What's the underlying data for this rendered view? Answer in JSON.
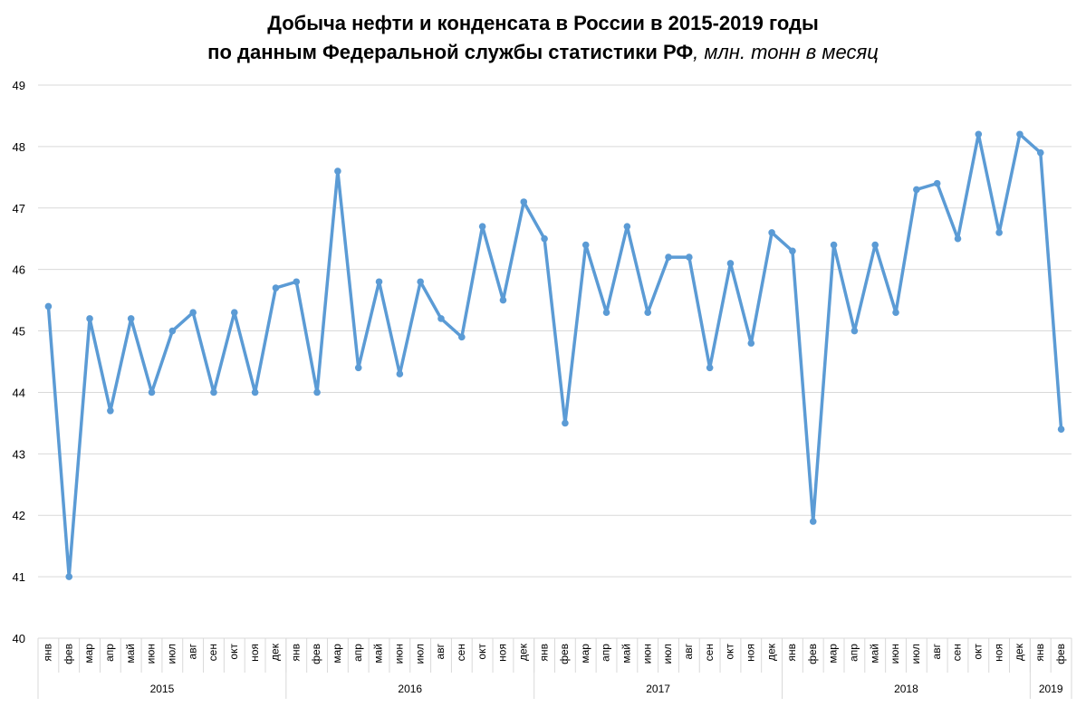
{
  "title": {
    "line1": "Добыча нефти и конденсата в России в 2015-2019 годы",
    "line2_bold": "по данным Федеральной службы статистики РФ",
    "line2_italic": ", млн. тонн в месяц"
  },
  "chart_data": {
    "type": "line",
    "title": "Добыча нефти и конденсата в России в 2015-2019 годы по данным Федеральной службы статистики РФ, млн. тонн в месяц",
    "xlabel": "",
    "ylabel": "",
    "ylim": [
      40,
      49
    ],
    "yticks": [
      40,
      41,
      42,
      43,
      44,
      45,
      46,
      47,
      48,
      49
    ],
    "grid": true,
    "legend": "none",
    "color": "#5B9BD5",
    "years": [
      {
        "label": "2015",
        "count": 12
      },
      {
        "label": "2016",
        "count": 12
      },
      {
        "label": "2017",
        "count": 12
      },
      {
        "label": "2018",
        "count": 12
      },
      {
        "label": "2019",
        "count": 2
      }
    ],
    "categories": [
      "янв",
      "фев",
      "мар",
      "апр",
      "май",
      "июн",
      "июл",
      "авг",
      "сен",
      "окт",
      "ноя",
      "дек",
      "янв",
      "фев",
      "мар",
      "апр",
      "май",
      "июн",
      "июл",
      "авг",
      "сен",
      "окт",
      "ноя",
      "дек",
      "янв",
      "фев",
      "мар",
      "апр",
      "май",
      "июн",
      "июл",
      "авг",
      "сен",
      "окт",
      "ноя",
      "дек",
      "янв",
      "фев",
      "мар",
      "апр",
      "май",
      "июн",
      "июл",
      "авг",
      "сен",
      "окт",
      "ноя",
      "дек",
      "янв",
      "фев"
    ],
    "values": [
      45.4,
      41.0,
      45.2,
      43.7,
      45.2,
      44.0,
      45.0,
      45.3,
      44.0,
      45.3,
      44.0,
      45.7,
      45.8,
      44.0,
      47.6,
      44.4,
      45.8,
      44.3,
      45.8,
      45.2,
      44.9,
      46.7,
      45.5,
      47.1,
      46.5,
      43.5,
      46.4,
      45.3,
      46.7,
      45.3,
      46.2,
      46.2,
      44.4,
      46.1,
      44.8,
      46.6,
      46.3,
      41.9,
      46.4,
      45.0,
      46.4,
      45.3,
      47.3,
      47.4,
      46.5,
      48.2,
      46.6,
      48.2,
      47.9,
      43.4
    ]
  }
}
